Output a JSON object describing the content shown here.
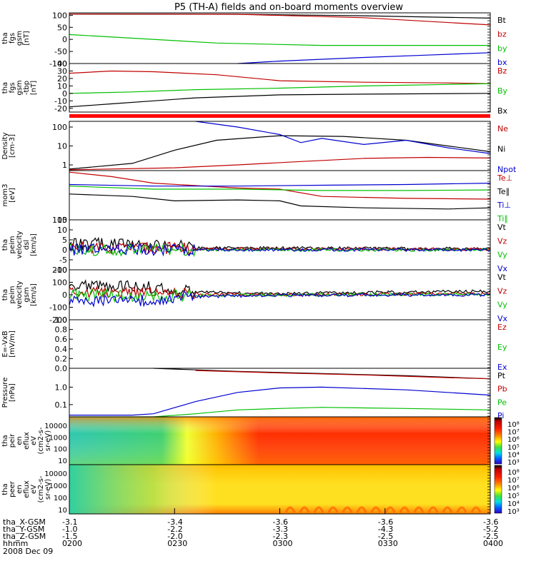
{
  "title": "P5 (TH-A) fields and on-board moments overview",
  "date_label": "2008 Dec 09",
  "chart_data": [
    {
      "type": "line",
      "ylabel": [
        "tha",
        "fgs",
        "gsm",
        "[nT]"
      ],
      "yticks": [
        100,
        50,
        0,
        -50,
        -100
      ],
      "ylim": [
        -100,
        110
      ],
      "series": [
        {
          "name": "Bt",
          "color": "#000000",
          "x": [
            0,
            0.4,
            0.7,
            1.0
          ],
          "y": [
            105,
            104,
            98,
            88
          ]
        },
        {
          "name": "bz",
          "color": "#c00000",
          "x": [
            0,
            0.2,
            0.4,
            0.7,
            1.0
          ],
          "y": [
            105,
            105,
            104,
            90,
            60
          ]
        },
        {
          "name": "by",
          "color": "#00c000",
          "x": [
            0,
            0.15,
            0.35,
            0.6,
            1.0
          ],
          "y": [
            20,
            5,
            -15,
            -25,
            -25
          ]
        },
        {
          "name": "bx",
          "color": "#0000d0",
          "x": [
            0.4,
            0.5,
            0.7,
            0.85,
            1.0
          ],
          "y": [
            -100,
            -90,
            -75,
            -65,
            -55
          ]
        }
      ]
    },
    {
      "type": "line",
      "ylabel": [
        "tha",
        "fgs",
        "gsm",
        "-tbp",
        "[nT]"
      ],
      "yticks": [
        40,
        30,
        20,
        10,
        0,
        -10,
        -20
      ],
      "ylim": [
        -25,
        40
      ],
      "series": [
        {
          "name": "Bz",
          "color": "#c00000",
          "x": [
            0,
            0.1,
            0.2,
            0.35,
            0.5,
            0.7,
            0.9,
            1.0
          ],
          "y": [
            27,
            30,
            29,
            25,
            17,
            15,
            14,
            13
          ]
        },
        {
          "name": "By",
          "color": "#00c000",
          "x": [
            0,
            0.15,
            0.3,
            0.5,
            0.7,
            0.9,
            1.0
          ],
          "y": [
            0,
            2,
            5,
            7,
            10,
            12,
            13
          ]
        },
        {
          "name": "Bx",
          "color": "#000000",
          "x": [
            0,
            0.1,
            0.2,
            0.3,
            0.5,
            0.7,
            1.0
          ],
          "y": [
            -18,
            -14,
            -10,
            -6,
            -2,
            -1,
            0
          ]
        }
      ]
    },
    {
      "type": "line",
      "ylabel": [
        "Density",
        "[cm-3]"
      ],
      "yticks": [
        "100",
        "10",
        "1"
      ],
      "yscale": "log",
      "ylim": [
        0.5,
        200
      ],
      "series": [
        {
          "name": "Ne",
          "color": "#c00000",
          "x": [
            0,
            0.25,
            0.4,
            0.55,
            0.7,
            0.85,
            1.0
          ],
          "y": [
            0.55,
            0.7,
            1.0,
            1.5,
            2.2,
            2.5,
            2.3
          ]
        },
        {
          "name": "Ni",
          "color": "#000000",
          "x": [
            0,
            0.15,
            0.25,
            0.35,
            0.5,
            0.65,
            0.8,
            1.0
          ],
          "y": [
            0.6,
            1.2,
            6,
            20,
            35,
            32,
            20,
            5
          ]
        },
        {
          "name": "Npot",
          "color": "#0000d0",
          "x": [
            0.3,
            0.4,
            0.5,
            0.55,
            0.6,
            0.7,
            0.8,
            0.9,
            1.0
          ],
          "y": [
            200,
            100,
            40,
            15,
            25,
            12,
            20,
            8,
            4
          ]
        }
      ]
    },
    {
      "type": "line",
      "ylabel": [
        "mom3",
        "[eV]"
      ],
      "yticks": [
        "100"
      ],
      "yscale": "log",
      "ylim": [
        100,
        30000
      ],
      "series": [
        {
          "name": "Te⊥",
          "color": "#c00000",
          "x": [
            0,
            0.1,
            0.2,
            0.4,
            0.5,
            0.6,
            0.8,
            1.0
          ],
          "y": [
            25000,
            15000,
            7000,
            4000,
            3500,
            1500,
            1200,
            1100
          ]
        },
        {
          "name": "Te∥",
          "color": "#000000",
          "x": [
            0,
            0.15,
            0.25,
            0.4,
            0.5,
            0.55,
            0.7,
            0.9,
            1.0
          ],
          "y": [
            2000,
            1500,
            900,
            1000,
            900,
            500,
            400,
            350,
            400
          ]
        },
        {
          "name": "Ti⊥",
          "color": "#0000d0",
          "x": [
            0,
            0.2,
            0.4,
            0.6,
            0.8,
            1.0
          ],
          "y": [
            6000,
            5000,
            5000,
            5500,
            6000,
            7000
          ]
        },
        {
          "name": "Ti∥",
          "color": "#00c000",
          "x": [
            0,
            0.2,
            0.4,
            0.6,
            0.8,
            1.0
          ],
          "y": [
            5000,
            3500,
            3500,
            3000,
            3000,
            3200
          ]
        }
      ]
    },
    {
      "type": "line",
      "ylabel": [
        "tha",
        "peim",
        "velocity",
        "dsl",
        "[km/s]"
      ],
      "yticks": [
        15,
        10,
        5,
        0,
        -5,
        -10
      ],
      "ylim": [
        -10,
        15
      ],
      "series": [
        {
          "name": "Vt",
          "color": "#000000",
          "x": [
            0,
            0.2,
            0.3,
            1.0
          ],
          "y": [
            3,
            3,
            1,
            0.5
          ]
        },
        {
          "name": "Vz",
          "color": "#c00000",
          "x": [
            0,
            0.2,
            0.3,
            1.0
          ],
          "y": [
            1,
            1,
            0.5,
            0.3
          ]
        },
        {
          "name": "Vy",
          "color": "#00c000",
          "x": [
            0,
            0.2,
            0.3,
            1.0
          ],
          "y": [
            0,
            0,
            0,
            0
          ]
        },
        {
          "name": "Vx",
          "color": "#0000d0",
          "x": [
            0,
            0.2,
            0.3,
            1.0
          ],
          "y": [
            0,
            0,
            0,
            0
          ]
        }
      ]
    },
    {
      "type": "line",
      "ylabel": [
        "tha",
        "peim",
        "velocity",
        "gsm",
        "[km/s]"
      ],
      "yticks": [
        200,
        100,
        0,
        -100,
        -200
      ],
      "ylim": [
        -200,
        200
      ],
      "series": [
        {
          "name": "Vt",
          "color": "#000000",
          "x": [
            0,
            0.2,
            0.3,
            0.5,
            1.0
          ],
          "y": [
            80,
            60,
            20,
            10,
            30
          ]
        },
        {
          "name": "Vz",
          "color": "#c00000",
          "x": [
            0,
            0.2,
            0.3,
            0.5,
            1.0
          ],
          "y": [
            20,
            10,
            5,
            0,
            10
          ]
        },
        {
          "name": "Vy",
          "color": "#00c000",
          "x": [
            0,
            0.2,
            0.3,
            0.5,
            1.0
          ],
          "y": [
            0,
            -10,
            -5,
            0,
            5
          ]
        },
        {
          "name": "Vx",
          "color": "#0000d0",
          "x": [
            0,
            0.2,
            0.3,
            0.5,
            1.0
          ],
          "y": [
            -60,
            -40,
            -15,
            -5,
            0
          ]
        }
      ]
    },
    {
      "type": "line",
      "ylabel": [
        "E=-VxB",
        "[mV/m]"
      ],
      "yticks": [
        "1.0",
        "0.8",
        "0.6",
        "0.4",
        "0.2",
        "0.0"
      ],
      "ylim": [
        0,
        1
      ],
      "series": [
        {
          "name": "Ez",
          "color": "#c00000",
          "x": [],
          "y": []
        },
        {
          "name": "Ey",
          "color": "#00c000",
          "x": [],
          "y": []
        },
        {
          "name": "Ex",
          "color": "#0000d0",
          "x": [],
          "y": []
        }
      ]
    },
    {
      "type": "line",
      "ylabel": [
        "Pressure",
        "[nPa]"
      ],
      "yticks": [
        "1.0",
        "0.1"
      ],
      "yscale": "log",
      "ylim": [
        0.02,
        12
      ],
      "series": [
        {
          "name": "Pt",
          "color": "#000000",
          "x": [
            0.2,
            0.4,
            0.6,
            0.8,
            1.0
          ],
          "y": [
            12,
            8,
            6,
            4.5,
            3
          ]
        },
        {
          "name": "Pb",
          "color": "#c00000",
          "x": [
            0.3,
            0.5,
            0.7,
            0.9,
            1.0
          ],
          "y": [
            9,
            6.5,
            5,
            3.5,
            3
          ]
        },
        {
          "name": "Pe",
          "color": "#00c000",
          "x": [
            0,
            0.2,
            0.3,
            0.4,
            0.5,
            0.6,
            0.8,
            1.0
          ],
          "y": [
            0.02,
            0.02,
            0.03,
            0.05,
            0.06,
            0.07,
            0.06,
            0.05
          ]
        },
        {
          "name": "Pi",
          "color": "#0000d0",
          "x": [
            0,
            0.15,
            0.2,
            0.3,
            0.4,
            0.5,
            0.6,
            0.8,
            1.0
          ],
          "y": [
            0.025,
            0.025,
            0.03,
            0.15,
            0.5,
            0.9,
            1.0,
            0.7,
            0.35
          ]
        }
      ]
    },
    {
      "type": "heatmap",
      "ylabel": [
        "tha",
        "peir",
        "en",
        "eflux",
        "eV",
        "(cm2-s-",
        "sr-eV)"
      ],
      "yticks": [
        "10000",
        "1000",
        "100",
        "10"
      ],
      "colorbar_ticks": [
        "10⁸",
        "10⁷",
        "10⁶",
        "10⁵",
        "10⁴",
        "10³"
      ]
    },
    {
      "type": "heatmap",
      "ylabel": [
        "tha",
        "peer",
        "en",
        "eflux",
        "eV",
        "(cm2-s-",
        "sr-eV)"
      ],
      "yticks": [
        "10000",
        "1000",
        "100",
        "10"
      ],
      "colorbar_ticks": [
        "10⁸",
        "10⁷",
        "10⁶",
        "10⁵",
        "10⁴",
        "10³"
      ]
    }
  ],
  "xaxis": {
    "rows": [
      {
        "label": "tha_X-GSM",
        "values": [
          "-3.1",
          "-3.4",
          "-3.6",
          "-3.6",
          "-3.6"
        ]
      },
      {
        "label": "tha_Y-GSM",
        "values": [
          "-1.0",
          "-2.2",
          "-3.3",
          "-4.3",
          "-5.2"
        ]
      },
      {
        "label": "tha_Z-GSM",
        "values": [
          "-1.5",
          "-2.0",
          "-2.3",
          "-2.5",
          "-2.5"
        ]
      },
      {
        "label": "hhmm",
        "values": [
          "0200",
          "0230",
          "0300",
          "0330",
          "0400"
        ]
      }
    ]
  }
}
